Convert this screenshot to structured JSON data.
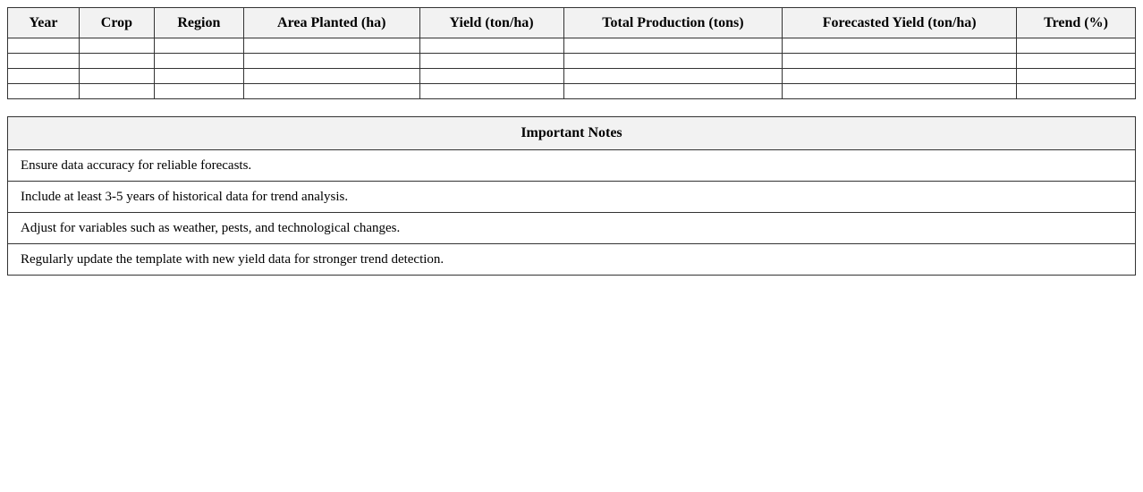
{
  "forecast_table": {
    "headers": [
      "Year",
      "Crop",
      "Region",
      "Area Planted (ha)",
      "Yield (ton/ha)",
      "Total Production (tons)",
      "Forecasted Yield (ton/ha)",
      "Trend (%)"
    ],
    "rows": [
      [
        "",
        "",
        "",
        "",
        "",
        "",
        "",
        ""
      ],
      [
        "",
        "",
        "",
        "",
        "",
        "",
        "",
        ""
      ],
      [
        "",
        "",
        "",
        "",
        "",
        "",
        "",
        ""
      ],
      [
        "",
        "",
        "",
        "",
        "",
        "",
        "",
        ""
      ]
    ]
  },
  "notes": {
    "title": "Important Notes",
    "items": [
      "Ensure data accuracy for reliable forecasts.",
      "Include at least 3-5 years of historical data for trend analysis.",
      "Adjust for variables such as weather, pests, and technological changes.",
      "Regularly update the template with new yield data for stronger trend detection."
    ]
  }
}
